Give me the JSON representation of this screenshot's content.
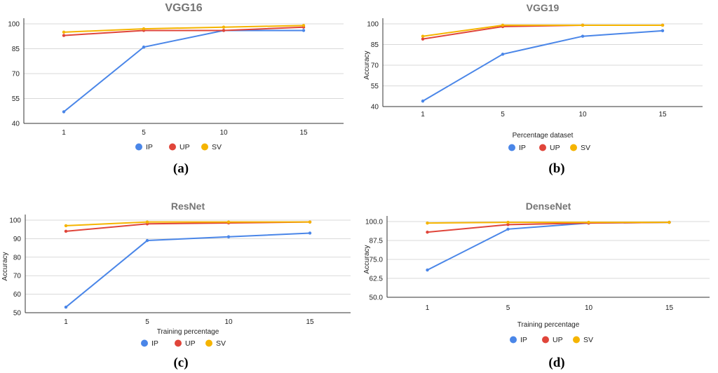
{
  "colors": {
    "IP": "#4a86e8",
    "UP": "#e0453a",
    "SV": "#f5b400",
    "grid": "#d9d9d9",
    "axis": "#333333"
  },
  "captions": [
    "(a)",
    "(b)",
    "(c)",
    "(d)"
  ],
  "chart_data": [
    {
      "type": "line",
      "title": "VGG16",
      "xlabel": "",
      "ylabel": "",
      "categories": [
        "1",
        "5",
        "10",
        "15"
      ],
      "yticks": [
        "40",
        "55",
        "70",
        "85",
        "100"
      ],
      "ylim": [
        40,
        100
      ],
      "grid": true,
      "legend": "bottom",
      "series": [
        {
          "name": "IP",
          "values": [
            47,
            86,
            96,
            96
          ]
        },
        {
          "name": "UP",
          "values": [
            93,
            96,
            96,
            98
          ]
        },
        {
          "name": "SV",
          "values": [
            95,
            97,
            98,
            99
          ]
        }
      ]
    },
    {
      "type": "line",
      "title": "VGG19",
      "xlabel": "Percentage dataset",
      "ylabel": "Accuracy",
      "categories": [
        "1",
        "5",
        "10",
        "15"
      ],
      "yticks": [
        "40",
        "55",
        "70",
        "85",
        "100"
      ],
      "ylim": [
        40,
        100
      ],
      "grid": true,
      "legend": "bottom",
      "series": [
        {
          "name": "IP",
          "values": [
            44,
            78,
            91,
            95
          ]
        },
        {
          "name": "UP",
          "values": [
            89,
            98,
            99,
            99
          ]
        },
        {
          "name": "SV",
          "values": [
            91,
            99,
            99,
            99
          ]
        }
      ]
    },
    {
      "type": "line",
      "title": "ResNet",
      "xlabel": "Training percentage",
      "ylabel": "Accuracy",
      "categories": [
        "1",
        "5",
        "10",
        "15"
      ],
      "yticks": [
        "50",
        "60",
        "70",
        "80",
        "90",
        "100"
      ],
      "ylim": [
        50,
        100
      ],
      "grid": true,
      "legend": "bottom",
      "series": [
        {
          "name": "IP",
          "values": [
            53,
            89,
            91,
            93
          ]
        },
        {
          "name": "UP",
          "values": [
            94,
            98,
            98.5,
            99
          ]
        },
        {
          "name": "SV",
          "values": [
            97,
            99,
            99,
            99
          ]
        }
      ]
    },
    {
      "type": "line",
      "title": "DenseNet",
      "xlabel": "Training percentage",
      "ylabel": "Accuracy",
      "categories": [
        "1",
        "5",
        "10",
        "15"
      ],
      "yticks": [
        "50.0",
        "62.5",
        "75.0",
        "87.5",
        "100.0"
      ],
      "ylim": [
        50,
        100
      ],
      "grid": true,
      "legend": "bottom",
      "series": [
        {
          "name": "IP",
          "values": [
            68,
            95,
            99,
            99.5
          ]
        },
        {
          "name": "UP",
          "values": [
            93,
            98,
            99,
            99.5
          ]
        },
        {
          "name": "SV",
          "values": [
            99,
            99.5,
            99.5,
            99.5
          ]
        }
      ]
    }
  ]
}
